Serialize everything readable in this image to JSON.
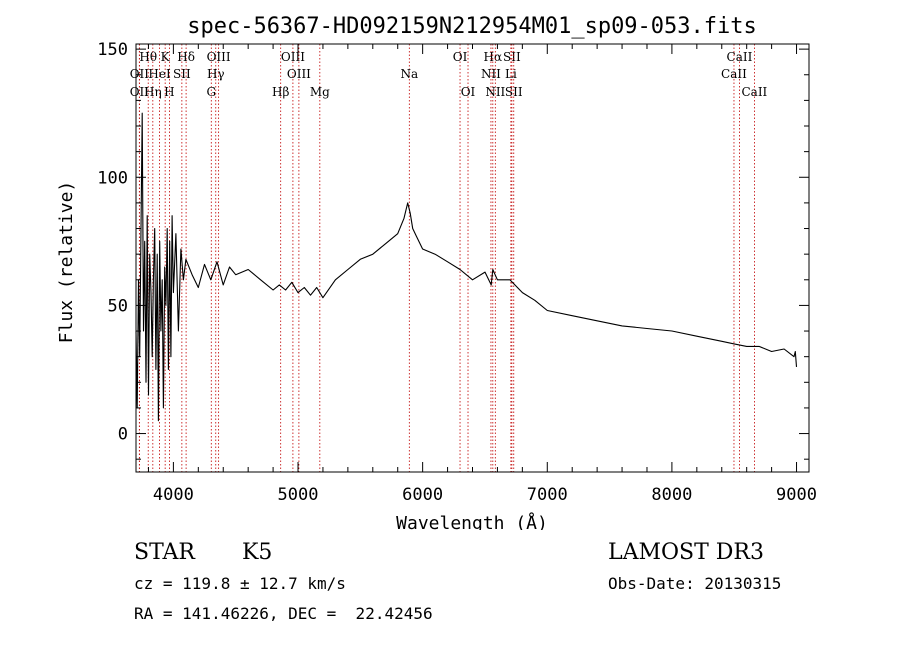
{
  "chart_data": {
    "type": "line",
    "title": "spec-56367-HD092159N212954M01_sp09-053.fits",
    "xlabel": "Wavelength (Å)",
    "ylabel": "Flux (relative)",
    "xlim": [
      3700,
      9100
    ],
    "ylim": [
      -15,
      152
    ],
    "xticks": [
      4000,
      5000,
      6000,
      7000,
      8000,
      9000
    ],
    "yticks": [
      0,
      50,
      100,
      150
    ],
    "grid": false,
    "series": [
      {
        "name": "flux",
        "x": [
          3700,
          3710,
          3720,
          3730,
          3740,
          3750,
          3760,
          3770,
          3780,
          3790,
          3800,
          3810,
          3820,
          3830,
          3840,
          3850,
          3860,
          3870,
          3880,
          3890,
          3900,
          3910,
          3920,
          3930,
          3940,
          3950,
          3960,
          3970,
          3980,
          3990,
          4000,
          4020,
          4040,
          4060,
          4080,
          4100,
          4150,
          4200,
          4250,
          4300,
          4350,
          4400,
          4450,
          4500,
          4600,
          4700,
          4800,
          4850,
          4900,
          4950,
          5000,
          5050,
          5100,
          5150,
          5200,
          5300,
          5400,
          5500,
          5600,
          5700,
          5800,
          5850,
          5880,
          5900,
          5920,
          5950,
          6000,
          6100,
          6200,
          6300,
          6400,
          6500,
          6550,
          6563,
          6600,
          6700,
          6800,
          6900,
          7000,
          7200,
          7400,
          7600,
          7800,
          8000,
          8200,
          8400,
          8500,
          8600,
          8700,
          8800,
          8900,
          8980,
          8990,
          9000
        ],
        "y": [
          40,
          10,
          60,
          30,
          80,
          125,
          40,
          75,
          20,
          85,
          15,
          70,
          55,
          30,
          60,
          80,
          25,
          70,
          5,
          75,
          40,
          60,
          10,
          65,
          50,
          80,
          25,
          75,
          30,
          85,
          55,
          78,
          40,
          72,
          60,
          68,
          62,
          57,
          66,
          60,
          67,
          58,
          65,
          62,
          64,
          60,
          56,
          58,
          56,
          59,
          55,
          57,
          54,
          57,
          53,
          60,
          64,
          68,
          70,
          74,
          78,
          84,
          90,
          86,
          80,
          77,
          72,
          70,
          67,
          64,
          60,
          63,
          58,
          64,
          60,
          60,
          55,
          52,
          48,
          46,
          44,
          42,
          41,
          40,
          38,
          36,
          35,
          34,
          34,
          32,
          33,
          30,
          32,
          26
        ]
      }
    ],
    "line_labels": [
      {
        "label": "OII",
        "x": 3727,
        "row": 2
      },
      {
        "label": "OIII",
        "x": 4959,
        "row": 1
      },
      {
        "label": "OIII",
        "x": 5007,
        "row": 2
      },
      {
        "label": "Hβ",
        "x": 4861,
        "row": 3
      },
      {
        "label": "Hγ",
        "x": 4340,
        "row": 2
      },
      {
        "label": "OIII",
        "x": 4363,
        "row": 1
      },
      {
        "label": "Hδ",
        "x": 4102,
        "row": 1
      },
      {
        "label": "H",
        "x": 3968,
        "row": 3
      },
      {
        "label": "K",
        "x": 3934,
        "row": 1
      },
      {
        "label": "SII",
        "x": 4068,
        "row": 2
      },
      {
        "label": "Hη",
        "x": 3835,
        "row": 3
      },
      {
        "label": "Hθ",
        "x": 3798,
        "row": 1
      },
      {
        "label": "HeI",
        "x": 3889,
        "row": 2
      },
      {
        "label": "OII",
        "x": 3727,
        "row": 3
      },
      {
        "label": "G",
        "x": 4304,
        "row": 3
      },
      {
        "label": "Mg",
        "x": 5175,
        "row": 3
      },
      {
        "label": "Na",
        "x": 5893,
        "row": 2
      },
      {
        "label": "OI",
        "x": 6300,
        "row": 1
      },
      {
        "label": "OI",
        "x": 6364,
        "row": 3
      },
      {
        "label": "Hα",
        "x": 6563,
        "row": 1
      },
      {
        "label": "NII",
        "x": 6548,
        "row": 2
      },
      {
        "label": "NII",
        "x": 6583,
        "row": 3
      },
      {
        "label": "SII",
        "x": 6716,
        "row": 1
      },
      {
        "label": "Li",
        "x": 6708,
        "row": 2
      },
      {
        "label": "SII",
        "x": 6731,
        "row": 3
      },
      {
        "label": "CaII",
        "x": 8542,
        "row": 1
      },
      {
        "label": "CaII",
        "x": 8498,
        "row": 2
      },
      {
        "label": "CaII",
        "x": 8662,
        "row": 3
      }
    ]
  },
  "info": {
    "object_class": "STAR",
    "subclass": "K5",
    "redshift": "cz = 119.8 ± 12.7 km/s",
    "coords": "RA = 141.46226, DEC =  22.42456",
    "survey": "LAMOST DR3",
    "obs_date": "Obs-Date: 20130315"
  },
  "colors": {
    "spectrum": "#000000",
    "line_marker": "#c00000",
    "axis": "#000000"
  }
}
